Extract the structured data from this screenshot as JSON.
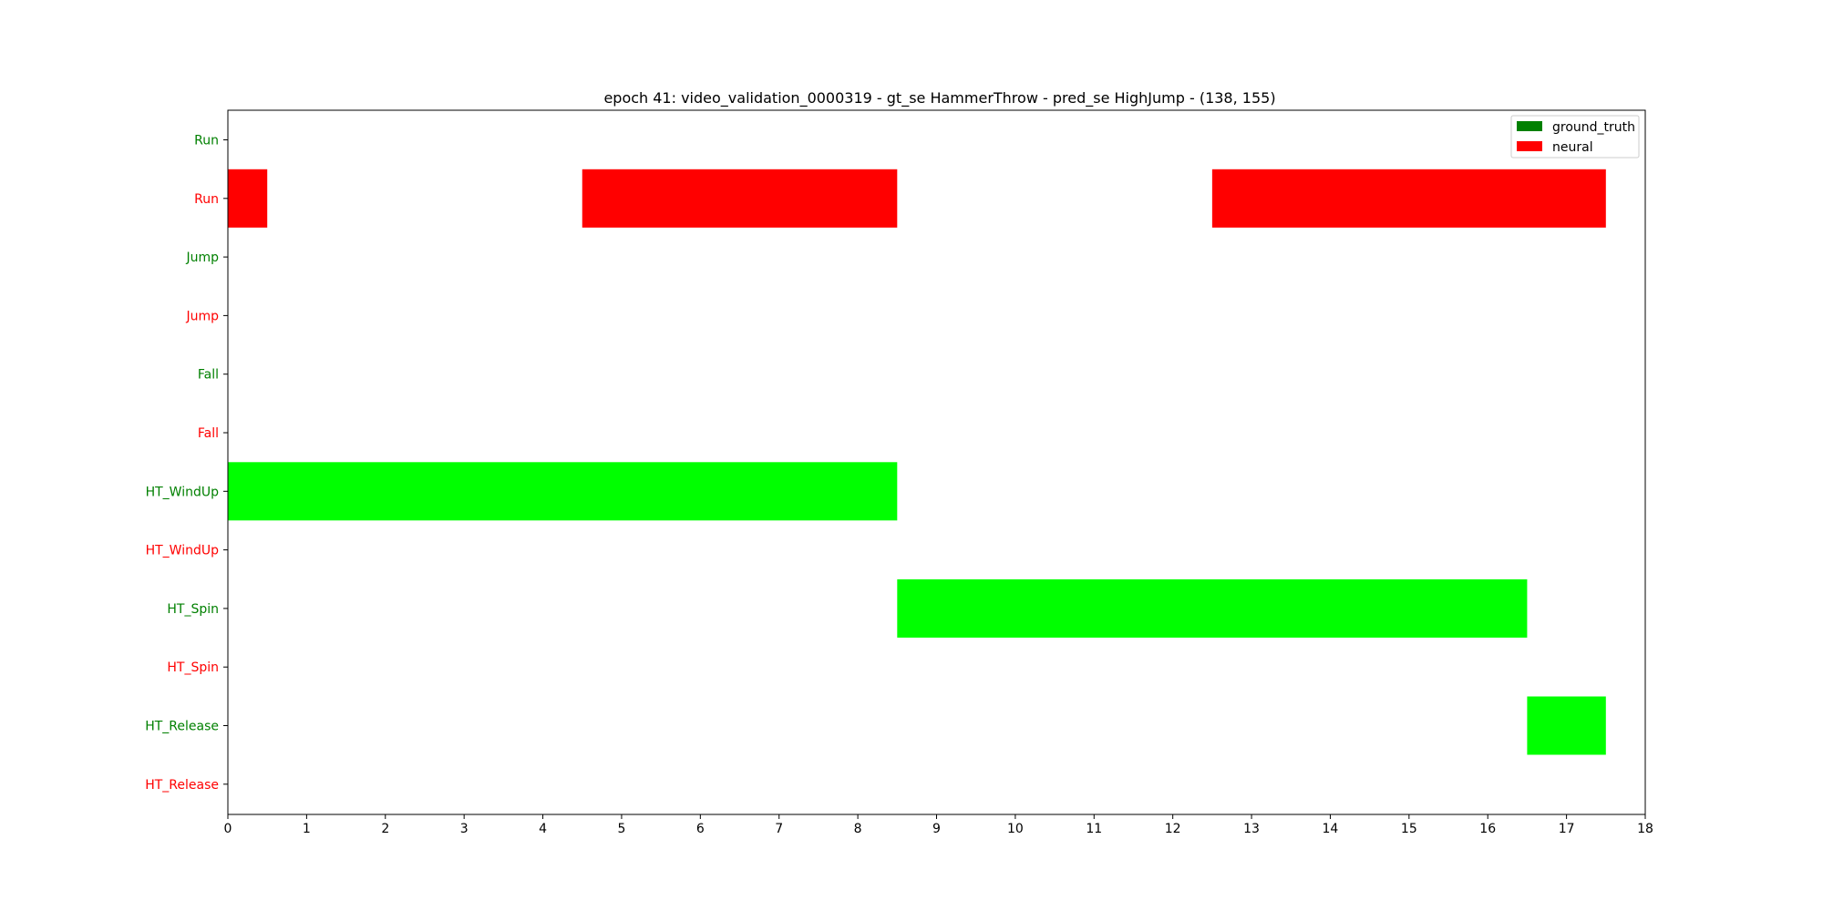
{
  "chart_data": {
    "type": "bar",
    "orientation": "horizontal-timeline",
    "title": "epoch 41: video_validation_0000319 - gt_se HammerThrow - pred_se HighJump - (138, 155)",
    "xlabel": "",
    "ylabel": "",
    "xlim": [
      0,
      18
    ],
    "x_ticks": [
      "0",
      "1",
      "2",
      "3",
      "4",
      "5",
      "6",
      "7",
      "8",
      "9",
      "10",
      "11",
      "12",
      "13",
      "14",
      "15",
      "16",
      "17",
      "18"
    ],
    "grid": false,
    "legend_position": "top-right",
    "rows": [
      {
        "label": "Run",
        "color": "#008000"
      },
      {
        "label": "Run",
        "color": "#ff0000"
      },
      {
        "label": "Jump",
        "color": "#008000"
      },
      {
        "label": "Jump",
        "color": "#ff0000"
      },
      {
        "label": "Fall",
        "color": "#008000"
      },
      {
        "label": "Fall",
        "color": "#ff0000"
      },
      {
        "label": "HT_WindUp",
        "color": "#008000"
      },
      {
        "label": "HT_WindUp",
        "color": "#ff0000"
      },
      {
        "label": "HT_Spin",
        "color": "#008000"
      },
      {
        "label": "HT_Spin",
        "color": "#ff0000"
      },
      {
        "label": "HT_Release",
        "color": "#008000"
      },
      {
        "label": "HT_Release",
        "color": "#ff0000"
      }
    ],
    "segments": [
      {
        "row": 1,
        "start": 0,
        "end": 0.5,
        "color": "#ff0000"
      },
      {
        "row": 1,
        "start": 4.5,
        "end": 8.5,
        "color": "#ff0000"
      },
      {
        "row": 1,
        "start": 12.5,
        "end": 17.5,
        "color": "#ff0000"
      },
      {
        "row": 6,
        "start": 0,
        "end": 8.5,
        "color": "#00ff00"
      },
      {
        "row": 8,
        "start": 8.5,
        "end": 16.5,
        "color": "#00ff00"
      },
      {
        "row": 10,
        "start": 16.5,
        "end": 17.5,
        "color": "#00ff00"
      }
    ],
    "legend": [
      {
        "name": "ground_truth",
        "color": "#008000"
      },
      {
        "name": "neural",
        "color": "#ff0000"
      }
    ]
  }
}
